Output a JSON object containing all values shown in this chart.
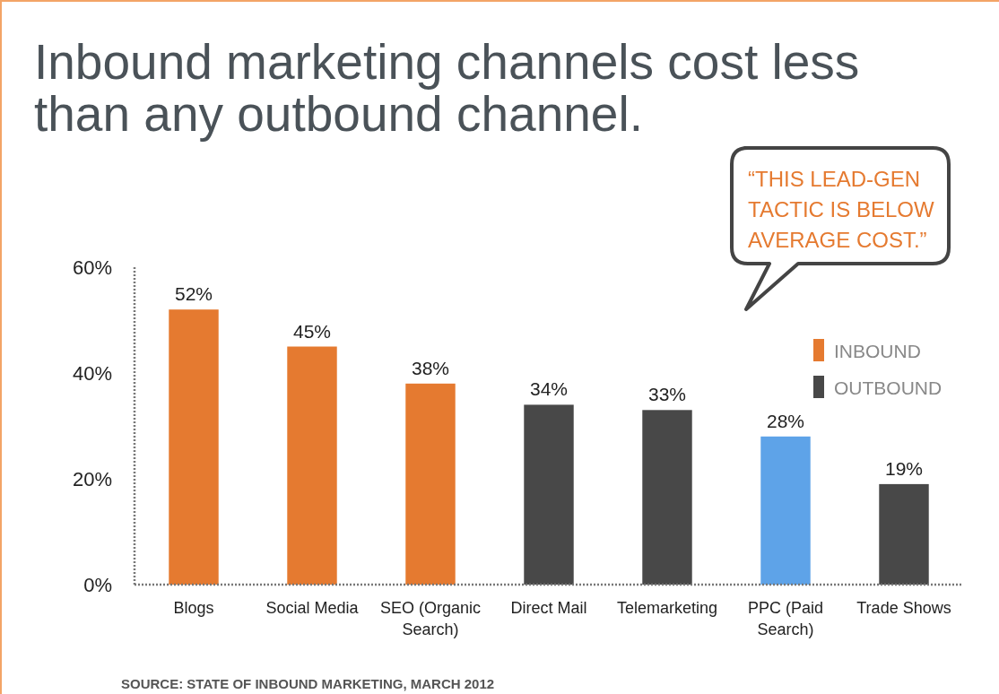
{
  "chart_data": {
    "type": "bar",
    "title": "Inbound marketing channels cost less than any outbound channel.",
    "categories": [
      "Blogs",
      "Social Media",
      "SEO (Organic Search)",
      "Direct Mail",
      "Telemarketing",
      "PPC (Paid Search)",
      "Trade Shows"
    ],
    "series": [
      {
        "name": "INBOUND",
        "color": "#e57a30",
        "values": [
          52,
          45,
          38,
          null,
          null,
          null,
          null
        ],
        "value_labels": [
          "52%",
          "45%",
          "38%",
          null,
          null,
          null,
          null
        ]
      },
      {
        "name": "OUTBOUND",
        "color": "#484848",
        "values": [
          null,
          null,
          null,
          34,
          33,
          null,
          19
        ],
        "value_labels": [
          null,
          null,
          null,
          "34%",
          "33%",
          null,
          "19%"
        ]
      },
      {
        "color": "#5ea3e8",
        "values": [
          null,
          null,
          null,
          null,
          null,
          28,
          null
        ],
        "value_labels": [
          null,
          null,
          null,
          null,
          null,
          "28%",
          null
        ]
      }
    ],
    "ylim": [
      0,
      60
    ],
    "yticks": [
      {
        "value": 0,
        "label": "0%"
      },
      {
        "value": 20,
        "label": "20%"
      },
      {
        "value": 40,
        "label": "40%"
      },
      {
        "value": 60,
        "label": "60%"
      }
    ],
    "grid": false,
    "legend": "right",
    "annotations": [
      "“THIS LEAD-GEN TACTIC IS BELOW AVERAGE COST.”",
      "SOURCE: STATE OF INBOUND MARKETING, MARCH 2012"
    ]
  }
}
